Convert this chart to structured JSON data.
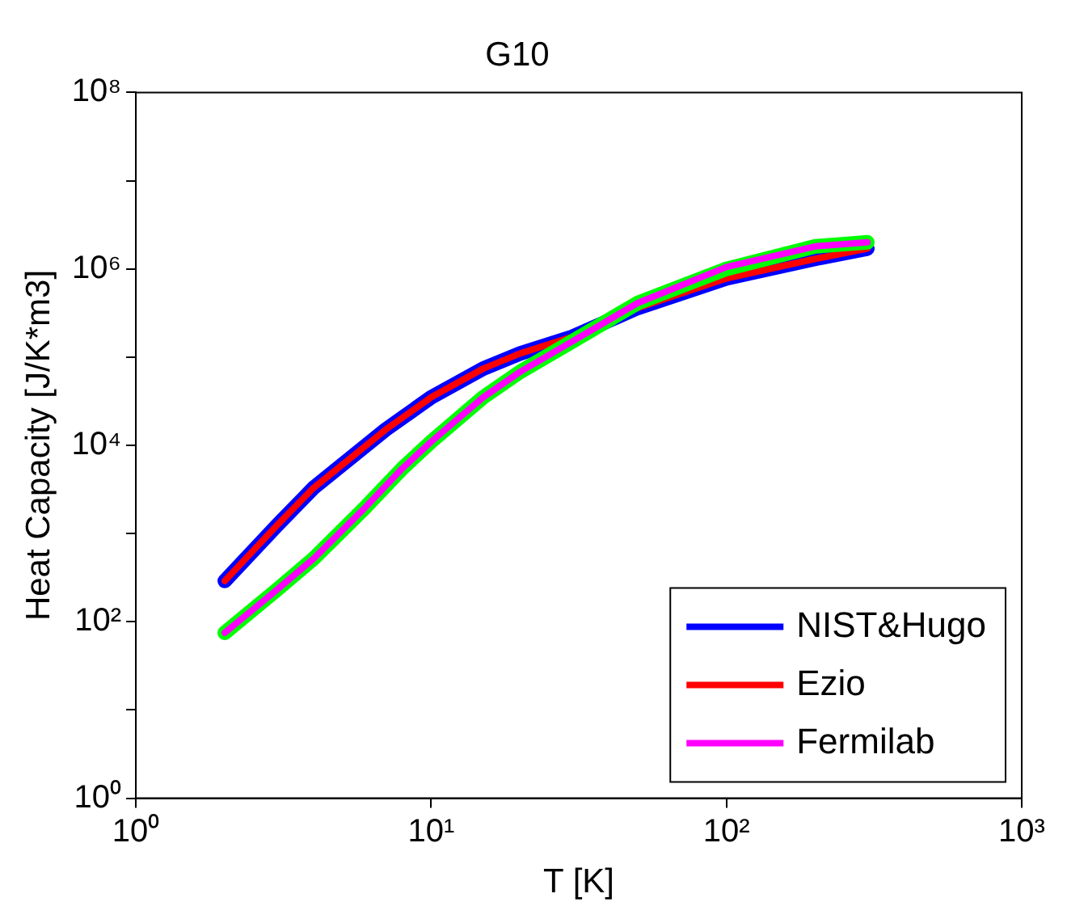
{
  "chart_data": {
    "type": "line",
    "title": "G10",
    "xlabel": "T [K]",
    "ylabel": "Heat Capacity [J/K*m3]",
    "log": "xy",
    "grid": false,
    "legend": "bottom right",
    "marker": "none",
    "line_style": "solid",
    "xlim": [
      1,
      1000
    ],
    "xticks": [
      {
        "value": 1,
        "label": "10⁰"
      },
      {
        "value": 10,
        "label": "10¹"
      },
      {
        "value": 100,
        "label": "10²"
      },
      {
        "value": 1000,
        "label": "10³"
      }
    ],
    "ylim": [
      1,
      100000000
    ],
    "yticks": [
      {
        "value": 1,
        "label": "10⁰"
      },
      {
        "value": 10,
        "label": null
      },
      {
        "value": 100,
        "label": "10²"
      },
      {
        "value": 1000,
        "label": null
      },
      {
        "value": 10000,
        "label": "10⁴"
      },
      {
        "value": 100000,
        "label": null
      },
      {
        "value": 1000000,
        "label": "10⁶"
      },
      {
        "value": 10000000,
        "label": null
      },
      {
        "value": 100000000,
        "label": "10⁸"
      }
    ],
    "x": [
      2,
      3,
      4,
      7,
      10,
      15,
      20,
      30,
      50,
      100,
      200,
      300
    ],
    "series": [
      {
        "name": "NIST&Hugo",
        "color": "#0000ff",
        "values": [
          290,
          1230,
          3300,
          15000,
          35000,
          74000,
          110000,
          170000,
          360000,
          780000,
          1300000,
          1700000
        ]
      },
      {
        "name": "Ezio",
        "color": "#ff0000",
        "values": [
          290,
          1230,
          3300,
          15000,
          35000,
          74000,
          110000,
          170000,
          360000,
          780000,
          1300000,
          1700000
        ]
      },
      {
        "color": "#00ff00",
        "x": [
          2,
          3,
          4,
          6,
          8,
          10,
          15,
          20,
          30,
          50,
          100,
          200,
          300
        ],
        "values": [
          75,
          230,
          520,
          2000,
          5500,
          11000,
          35000,
          68000,
          150000,
          410000,
          1000000,
          1800000,
          2000000
        ]
      },
      {
        "name": "Fermilab",
        "color": "#ff00ff",
        "x": [
          2,
          3,
          4,
          6,
          8,
          10,
          15,
          20,
          30,
          50,
          100,
          200,
          300
        ],
        "values": [
          75,
          230,
          520,
          2000,
          5500,
          11000,
          35000,
          68000,
          150000,
          410000,
          1050000,
          1800000,
          2000000
        ]
      }
    ]
  }
}
